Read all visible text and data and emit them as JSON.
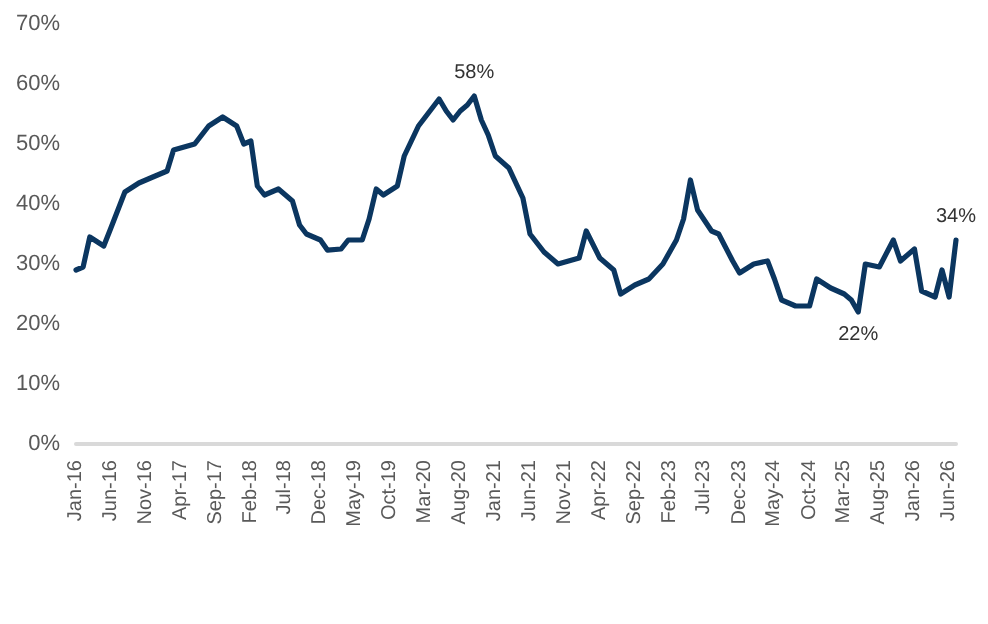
{
  "chart_data": {
    "type": "line",
    "grid": false,
    "marker": "none",
    "line_style": "solid",
    "series": [
      {
        "color": "#0b3660",
        "x": [
          "2016-01",
          "2016-02",
          "2016-03",
          "2016-05",
          "2016-06",
          "2016-08",
          "2016-10",
          "2016-12",
          "2017-02",
          "2017-03",
          "2017-06",
          "2017-08",
          "2017-10",
          "2017-12",
          "2018-01",
          "2018-02",
          "2018-03",
          "2018-04",
          "2018-06",
          "2018-08",
          "2018-09",
          "2018-10",
          "2018-12",
          "2019-01",
          "2019-03",
          "2019-04",
          "2019-06",
          "2019-07",
          "2019-08",
          "2019-09",
          "2019-11",
          "2019-12",
          "2020-02",
          "2020-04",
          "2020-05",
          "2020-06",
          "2020-07",
          "2020-08",
          "2020-09",
          "2020-10",
          "2020-11",
          "2020-12",
          "2021-01",
          "2021-03",
          "2021-05",
          "2021-06",
          "2021-08",
          "2021-10",
          "2022-01",
          "2022-02",
          "2022-04",
          "2022-06",
          "2022-07",
          "2022-09",
          "2022-11",
          "2023-01",
          "2023-03",
          "2023-04",
          "2023-05",
          "2023-06",
          "2023-08",
          "2023-09",
          "2023-11",
          "2023-12",
          "2024-02",
          "2024-04",
          "2024-05",
          "2024-06",
          "2024-08",
          "2024-10",
          "2024-11",
          "2025-01",
          "2025-03",
          "2025-04",
          "2025-05",
          "2025-06",
          "2025-08",
          "2025-10",
          "2025-11",
          "2026-01",
          "2026-02",
          "2026-04",
          "2026-05",
          "2026-06",
          "2026-07"
        ],
        "values": [
          29,
          29.5,
          34.5,
          33,
          36,
          42,
          43.5,
          44.5,
          45.5,
          49,
          50,
          53,
          54.5,
          53,
          50,
          50.5,
          43,
          41.5,
          42.5,
          40.5,
          36.5,
          35,
          34,
          32.3,
          32.5,
          34,
          34,
          37.5,
          42.5,
          41.5,
          43,
          48,
          53,
          56,
          57.5,
          55.5,
          54,
          55.5,
          56.5,
          58,
          54,
          51.5,
          48,
          46,
          41,
          35,
          32,
          30,
          31,
          35.5,
          31,
          29,
          25,
          26.5,
          27.5,
          30,
          34,
          37.5,
          44,
          39,
          35.5,
          35,
          30.5,
          28.5,
          30,
          30.5,
          27.5,
          24,
          23,
          23,
          27.5,
          26,
          25,
          24,
          22,
          30,
          29.5,
          34,
          30.5,
          32.5,
          25.5,
          24.5,
          29,
          24.5,
          34
        ]
      }
    ],
    "xlim": [
      "2016-01",
      "2026-07"
    ],
    "xticks": [
      {
        "value": "2016-01",
        "label": "Jan-16"
      },
      {
        "value": "2016-06",
        "label": "Jun-16"
      },
      {
        "value": "2016-11",
        "label": "Nov-16"
      },
      {
        "value": "2017-04",
        "label": "Apr-17"
      },
      {
        "value": "2017-09",
        "label": "Sep-17"
      },
      {
        "value": "2018-02",
        "label": "Feb-18"
      },
      {
        "value": "2018-07",
        "label": "Jul-18"
      },
      {
        "value": "2018-12",
        "label": "Dec-18"
      },
      {
        "value": "2019-05",
        "label": "May-19"
      },
      {
        "value": "2019-10",
        "label": "Oct-19"
      },
      {
        "value": "2020-03",
        "label": "Mar-20"
      },
      {
        "value": "2020-08",
        "label": "Aug-20"
      },
      {
        "value": "2021-01",
        "label": "Jan-21"
      },
      {
        "value": "2021-06",
        "label": "Jun-21"
      },
      {
        "value": "2021-11",
        "label": "Nov-21"
      },
      {
        "value": "2022-04",
        "label": "Apr-22"
      },
      {
        "value": "2022-09",
        "label": "Sep-22"
      },
      {
        "value": "2023-02",
        "label": "Feb-23"
      },
      {
        "value": "2023-07",
        "label": "Jul-23"
      },
      {
        "value": "2023-12",
        "label": "Dec-23"
      },
      {
        "value": "2024-05",
        "label": "May-24"
      },
      {
        "value": "2024-10",
        "label": "Oct-24"
      },
      {
        "value": "2025-03",
        "label": "Mar-25"
      },
      {
        "value": "2025-08",
        "label": "Aug-25"
      },
      {
        "value": "2026-01",
        "label": "Jan-26"
      },
      {
        "value": "2026-06",
        "label": "Jun-26"
      }
    ],
    "ylim": [
      0,
      70
    ],
    "yticks": [
      {
        "value": 0,
        "label": "0%"
      },
      {
        "value": 10,
        "label": "10%"
      },
      {
        "value": 20,
        "label": "20%"
      },
      {
        "value": 30,
        "label": "30%"
      },
      {
        "value": 40,
        "label": "40%"
      },
      {
        "value": 50,
        "label": "50%"
      },
      {
        "value": 60,
        "label": "60%"
      },
      {
        "value": 70,
        "label": "70%"
      }
    ],
    "annotations": [
      {
        "text": "58%",
        "x": "2020-10",
        "y": 58
      },
      {
        "text": "22%",
        "x": "2025-05",
        "y": 22
      },
      {
        "text": "34%",
        "x": "2026-07",
        "y": 34
      }
    ]
  }
}
